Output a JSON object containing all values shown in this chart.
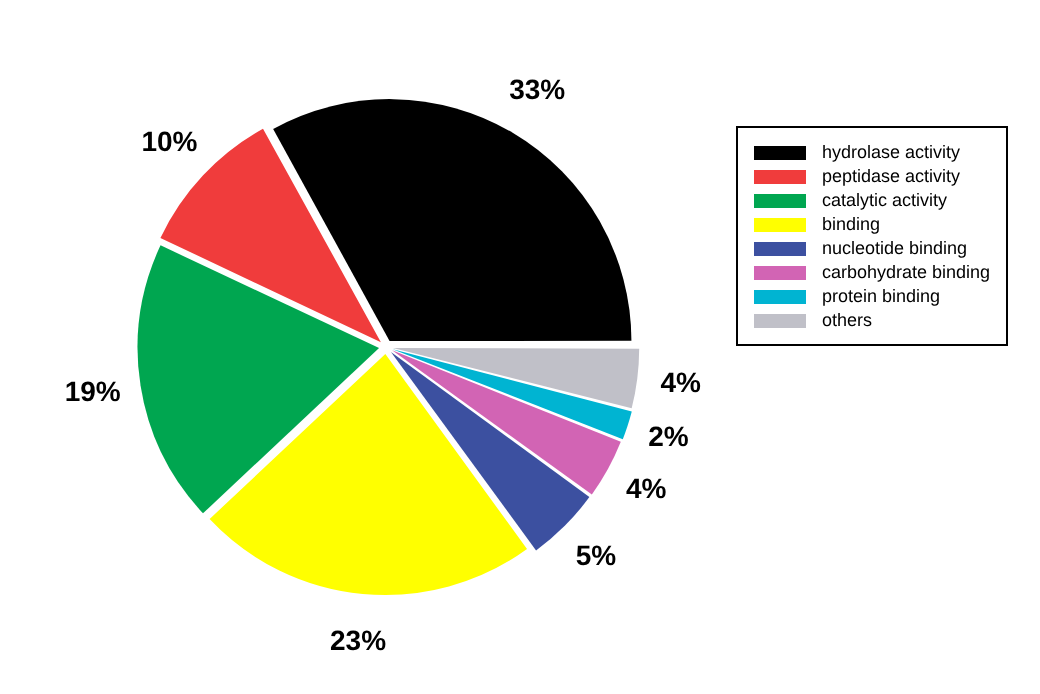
{
  "chart_data": {
    "type": "pie",
    "categories": [
      "hydrolase activity",
      "peptidase activity",
      "catalytic activity",
      "binding",
      "nucleotide binding",
      "carbohydrate binding",
      "protein binding",
      "others"
    ],
    "values": [
      33,
      10,
      19,
      23,
      5,
      4,
      2,
      4
    ],
    "value_labels": [
      "33%",
      "10%",
      "19%",
      "23%",
      "5%",
      "4%",
      "2%",
      "4%"
    ],
    "colors": [
      "#000000",
      "#f03c3c",
      "#00a650",
      "#ffff00",
      "#3c50a0",
      "#d264b4",
      "#00b4d2",
      "#c0c0c8"
    ],
    "legend": "right"
  }
}
